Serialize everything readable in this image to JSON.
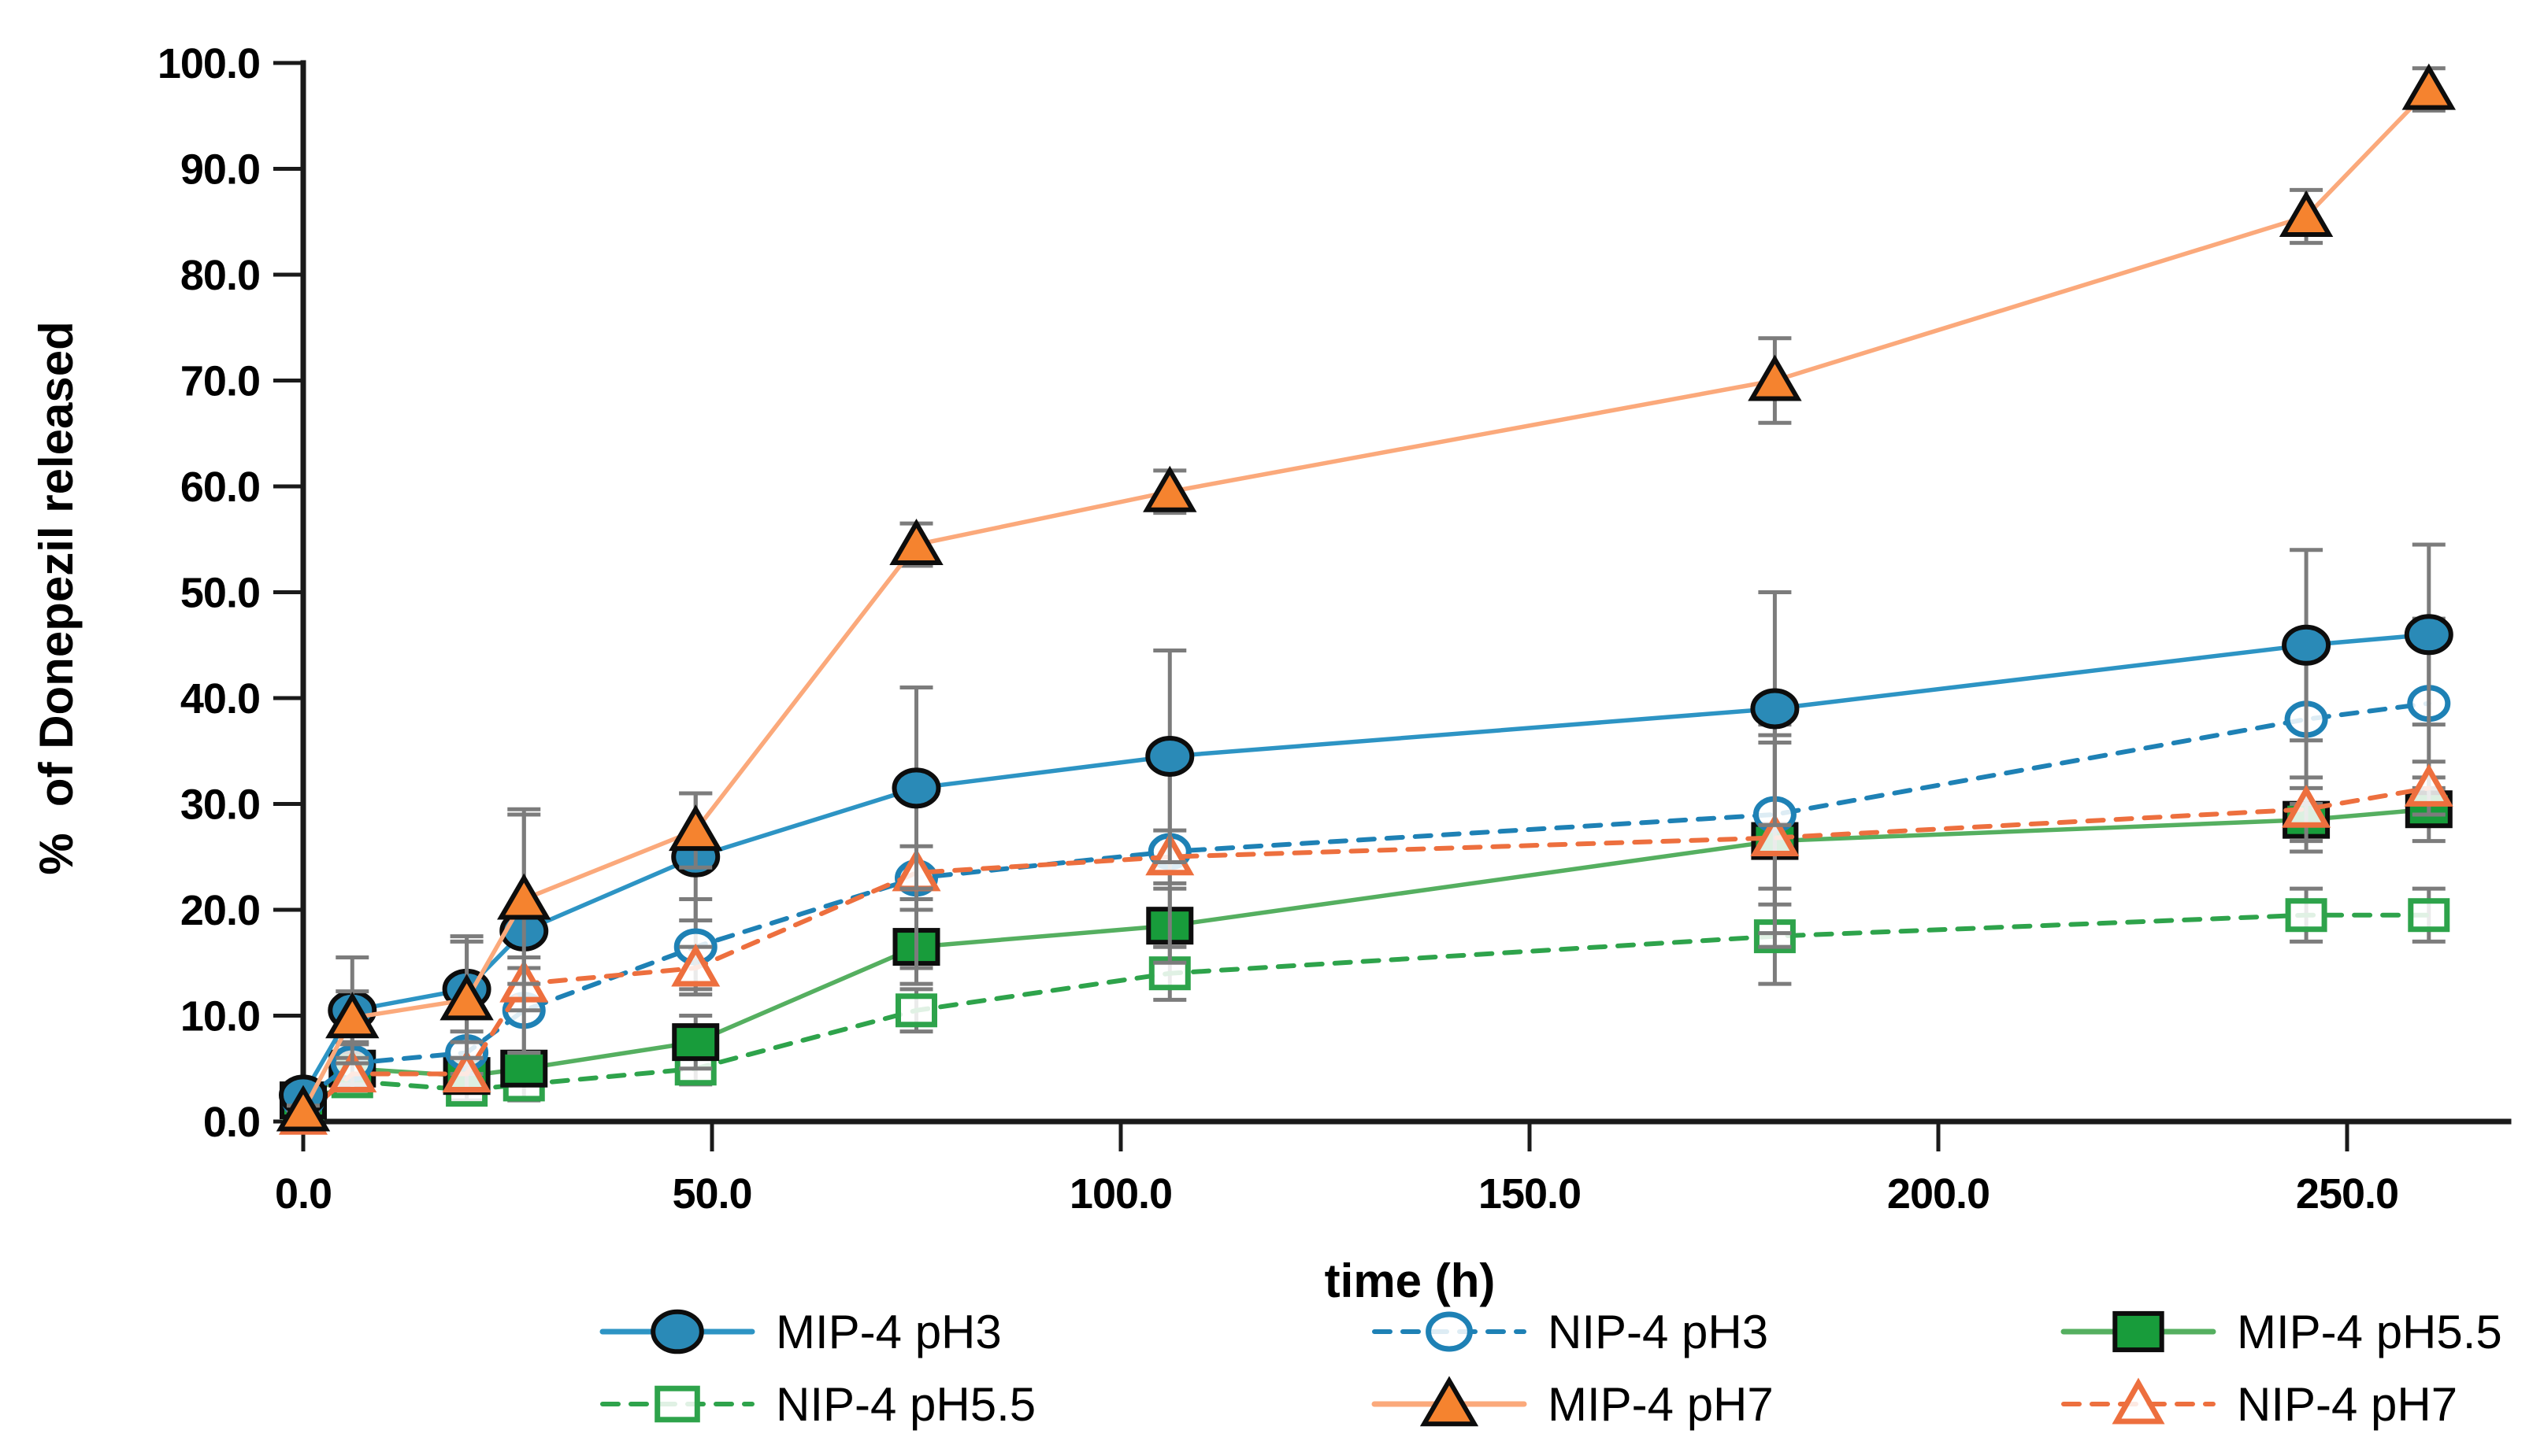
{
  "figure": {
    "background": "#FFFFFF",
    "x_axis_title": "time (h)",
    "y_axis_title": "%  of Donepezil released"
  },
  "chart_data": {
    "type": "line",
    "title": "",
    "xlabel": "time (h)",
    "ylabel": "%  of Donepezil released",
    "xlim": [
      0,
      270
    ],
    "ylim": [
      0,
      100
    ],
    "grid": false,
    "legend_position": "bottom",
    "axis_color": "#1A1A1A",
    "error_bar_color": "#7C7C7C",
    "x_ticks": [
      0,
      50,
      100,
      150,
      200,
      250
    ],
    "x_tick_labels": [
      "0.0",
      "50.0",
      "100.0",
      "150.0",
      "200.0",
      "250.0"
    ],
    "y_ticks": [
      0,
      10,
      20,
      30,
      40,
      50,
      60,
      70,
      80,
      90,
      100
    ],
    "y_tick_labels": [
      "0.0",
      "10.0",
      "20.0",
      "30.0",
      "40.0",
      "50.0",
      "60.0",
      "70.0",
      "80.0",
      "90.0",
      "100.0"
    ],
    "x": [
      0,
      6,
      20,
      27,
      48,
      75,
      106,
      180,
      245,
      260
    ],
    "series": [
      {
        "name": "MIP-4 pH3",
        "marker": "circle",
        "fill": "filled",
        "line_style": "solid",
        "color": "#2A8AB7",
        "line_color": "#2D94C4",
        "values": [
          2.5,
          10.5,
          12.5,
          18.0,
          25.0,
          31.5,
          34.5,
          39.0,
          45.0,
          46.0
        ],
        "errors": [
          1.0,
          5.0,
          5.0,
          11.5,
          6.0,
          9.5,
          10.0,
          11.0,
          9.0,
          8.5
        ]
      },
      {
        "name": "NIP-4 pH3",
        "marker": "circle",
        "fill": "open",
        "line_style": "dashed",
        "color": "#1E81B5",
        "line_color": "#1E81B5",
        "values": [
          2.0,
          5.5,
          6.5,
          10.5,
          16.5,
          23.0,
          25.5,
          29.0,
          38.0,
          39.5
        ],
        "errors": [
          1.0,
          2.0,
          2.0,
          4.0,
          4.5,
          8.5,
          9.0,
          8.5,
          8.0,
          8.0
        ]
      },
      {
        "name": "MIP-4 pH5.5",
        "marker": "square",
        "fill": "filled",
        "line_style": "solid",
        "color": "#189C3B",
        "line_color": "#55AF60",
        "values": [
          2.0,
          5.0,
          4.3,
          5.0,
          7.5,
          16.5,
          18.5,
          26.5,
          28.5,
          29.5
        ],
        "errors": [
          1.0,
          1.5,
          1.5,
          1.5,
          2.5,
          3.5,
          3.5,
          10.0,
          3.0,
          3.0
        ]
      },
      {
        "name": "NIP-4 pH5.5",
        "marker": "square",
        "fill": "open",
        "line_style": "dashed",
        "color": "#2EA34B",
        "line_color": "#2EA34B",
        "values": [
          1.5,
          3.8,
          3.0,
          3.5,
          5.0,
          10.5,
          14.0,
          17.5,
          19.5,
          19.5
        ],
        "errors": [
          0.5,
          1.0,
          1.0,
          1.5,
          1.5,
          2.0,
          2.5,
          4.5,
          2.5,
          2.5
        ]
      },
      {
        "name": "MIP-4 pH7",
        "marker": "triangle",
        "fill": "filled",
        "line_style": "solid",
        "color": "#F5832F",
        "line_color": "#FBA97B",
        "values": [
          1.0,
          9.8,
          11.5,
          21.0,
          27.5,
          54.5,
          59.5,
          70.0,
          85.5,
          97.5
        ],
        "errors": [
          0.5,
          2.5,
          5.5,
          8.0,
          3.5,
          2.0,
          2.0,
          4.0,
          2.5,
          2.0
        ]
      },
      {
        "name": "NIP-4 pH7",
        "marker": "triangle",
        "fill": "open",
        "line_style": "dashed",
        "color": "#ED6F3E",
        "line_color": "#ED6F3E",
        "values": [
          0.5,
          4.5,
          4.5,
          13.0,
          14.5,
          23.5,
          25.0,
          26.8,
          29.5,
          31.5
        ],
        "errors": [
          0.5,
          1.5,
          1.5,
          2.5,
          2.0,
          2.5,
          2.5,
          9.0,
          3.0,
          2.5
        ]
      }
    ]
  }
}
